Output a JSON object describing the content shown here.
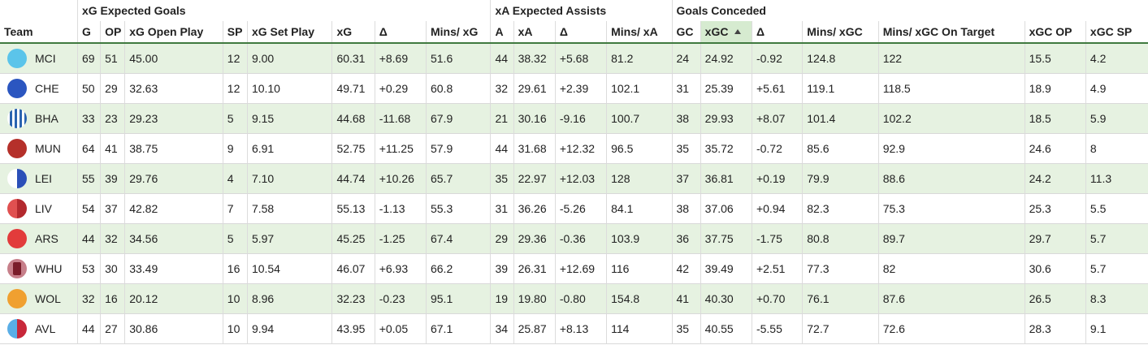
{
  "groups": {
    "xg": "xG Expected Goals",
    "xa": "xA Expected Assists",
    "gc": "Goals Conceded"
  },
  "columns": [
    "Team",
    "G",
    "OP",
    "xG Open Play",
    "SP",
    "xG Set Play",
    "xG",
    "Δ",
    "Mins/ xG",
    "A",
    "xA",
    "Δ",
    "Mins/ xA",
    "GC",
    "xGC",
    "Δ",
    "Mins/ xGC",
    "Mins/ xGC On Target",
    "xGC OP",
    "xGC SP"
  ],
  "sorted_column": "xGC",
  "sort_direction": "ascending",
  "rows": [
    {
      "team": "MCI",
      "badge": {
        "style": "solid",
        "c1": "#5bc4ea"
      },
      "cells": [
        "69",
        "51",
        "45.00",
        "12",
        "9.00",
        "60.31",
        "+8.69",
        "51.6",
        "44",
        "38.32",
        "+5.68",
        "81.2",
        "24",
        "24.92",
        "-0.92",
        "124.8",
        "122",
        "15.5",
        "4.2"
      ]
    },
    {
      "team": "CHE",
      "badge": {
        "style": "solid",
        "c1": "#2b56c0"
      },
      "cells": [
        "50",
        "29",
        "32.63",
        "12",
        "10.10",
        "49.71",
        "+0.29",
        "60.8",
        "32",
        "29.61",
        "+2.39",
        "102.1",
        "31",
        "25.39",
        "+5.61",
        "119.1",
        "118.5",
        "18.9",
        "4.9"
      ]
    },
    {
      "team": "BHA",
      "badge": {
        "style": "stripes",
        "c1": "#2a63b0"
      },
      "cells": [
        "33",
        "23",
        "29.23",
        "5",
        "9.15",
        "44.68",
        "-11.68",
        "67.9",
        "21",
        "30.16",
        "-9.16",
        "100.7",
        "38",
        "29.93",
        "+8.07",
        "101.4",
        "102.2",
        "18.5",
        "5.9"
      ]
    },
    {
      "team": "MUN",
      "badge": {
        "style": "solid",
        "c1": "#b5302a"
      },
      "cells": [
        "64",
        "41",
        "38.75",
        "9",
        "6.91",
        "52.75",
        "+11.25",
        "57.9",
        "44",
        "31.68",
        "+12.32",
        "96.5",
        "35",
        "35.72",
        "-0.72",
        "85.6",
        "92.9",
        "24.6",
        "8"
      ]
    },
    {
      "team": "LEI",
      "badge": {
        "style": "split",
        "c1": "#ffffff",
        "c2": "#2b4fb8"
      },
      "cells": [
        "55",
        "39",
        "29.76",
        "4",
        "7.10",
        "44.74",
        "+10.26",
        "65.7",
        "35",
        "22.97",
        "+12.03",
        "128",
        "37",
        "36.81",
        "+0.19",
        "79.9",
        "88.6",
        "24.2",
        "11.3"
      ]
    },
    {
      "team": "LIV",
      "badge": {
        "style": "split",
        "c1": "#e05050",
        "c2": "#b3292e"
      },
      "cells": [
        "54",
        "37",
        "42.82",
        "7",
        "7.58",
        "55.13",
        "-1.13",
        "55.3",
        "31",
        "36.26",
        "-5.26",
        "84.1",
        "38",
        "37.06",
        "+0.94",
        "82.3",
        "75.3",
        "25.3",
        "5.5"
      ]
    },
    {
      "team": "ARS",
      "badge": {
        "style": "solid",
        "c1": "#e23b3b"
      },
      "cells": [
        "44",
        "32",
        "34.56",
        "5",
        "5.97",
        "45.25",
        "-1.25",
        "67.4",
        "29",
        "29.36",
        "-0.36",
        "103.9",
        "36",
        "37.75",
        "-1.75",
        "80.8",
        "89.7",
        "29.7",
        "5.7"
      ]
    },
    {
      "team": "WHU",
      "badge": {
        "style": "whu",
        "c1": "#7a1d2a"
      },
      "cells": [
        "53",
        "30",
        "33.49",
        "16",
        "10.54",
        "46.07",
        "+6.93",
        "66.2",
        "39",
        "26.31",
        "+12.69",
        "116",
        "42",
        "39.49",
        "+2.51",
        "77.3",
        "82",
        "30.6",
        "5.7"
      ]
    },
    {
      "team": "WOL",
      "badge": {
        "style": "solid",
        "c1": "#f0a030"
      },
      "cells": [
        "32",
        "16",
        "20.12",
        "10",
        "8.96",
        "32.23",
        "-0.23",
        "95.1",
        "19",
        "19.80",
        "-0.80",
        "154.8",
        "41",
        "40.30",
        "+0.70",
        "76.1",
        "87.6",
        "26.5",
        "8.3"
      ]
    },
    {
      "team": "AVL",
      "badge": {
        "style": "split",
        "c1": "#5aaee6",
        "c2": "#c8283a"
      },
      "cells": [
        "44",
        "27",
        "30.86",
        "10",
        "9.94",
        "43.95",
        "+0.05",
        "67.1",
        "34",
        "25.87",
        "+8.13",
        "114",
        "35",
        "40.55",
        "-5.55",
        "72.7",
        "72.6",
        "28.3",
        "9.1"
      ]
    }
  ]
}
